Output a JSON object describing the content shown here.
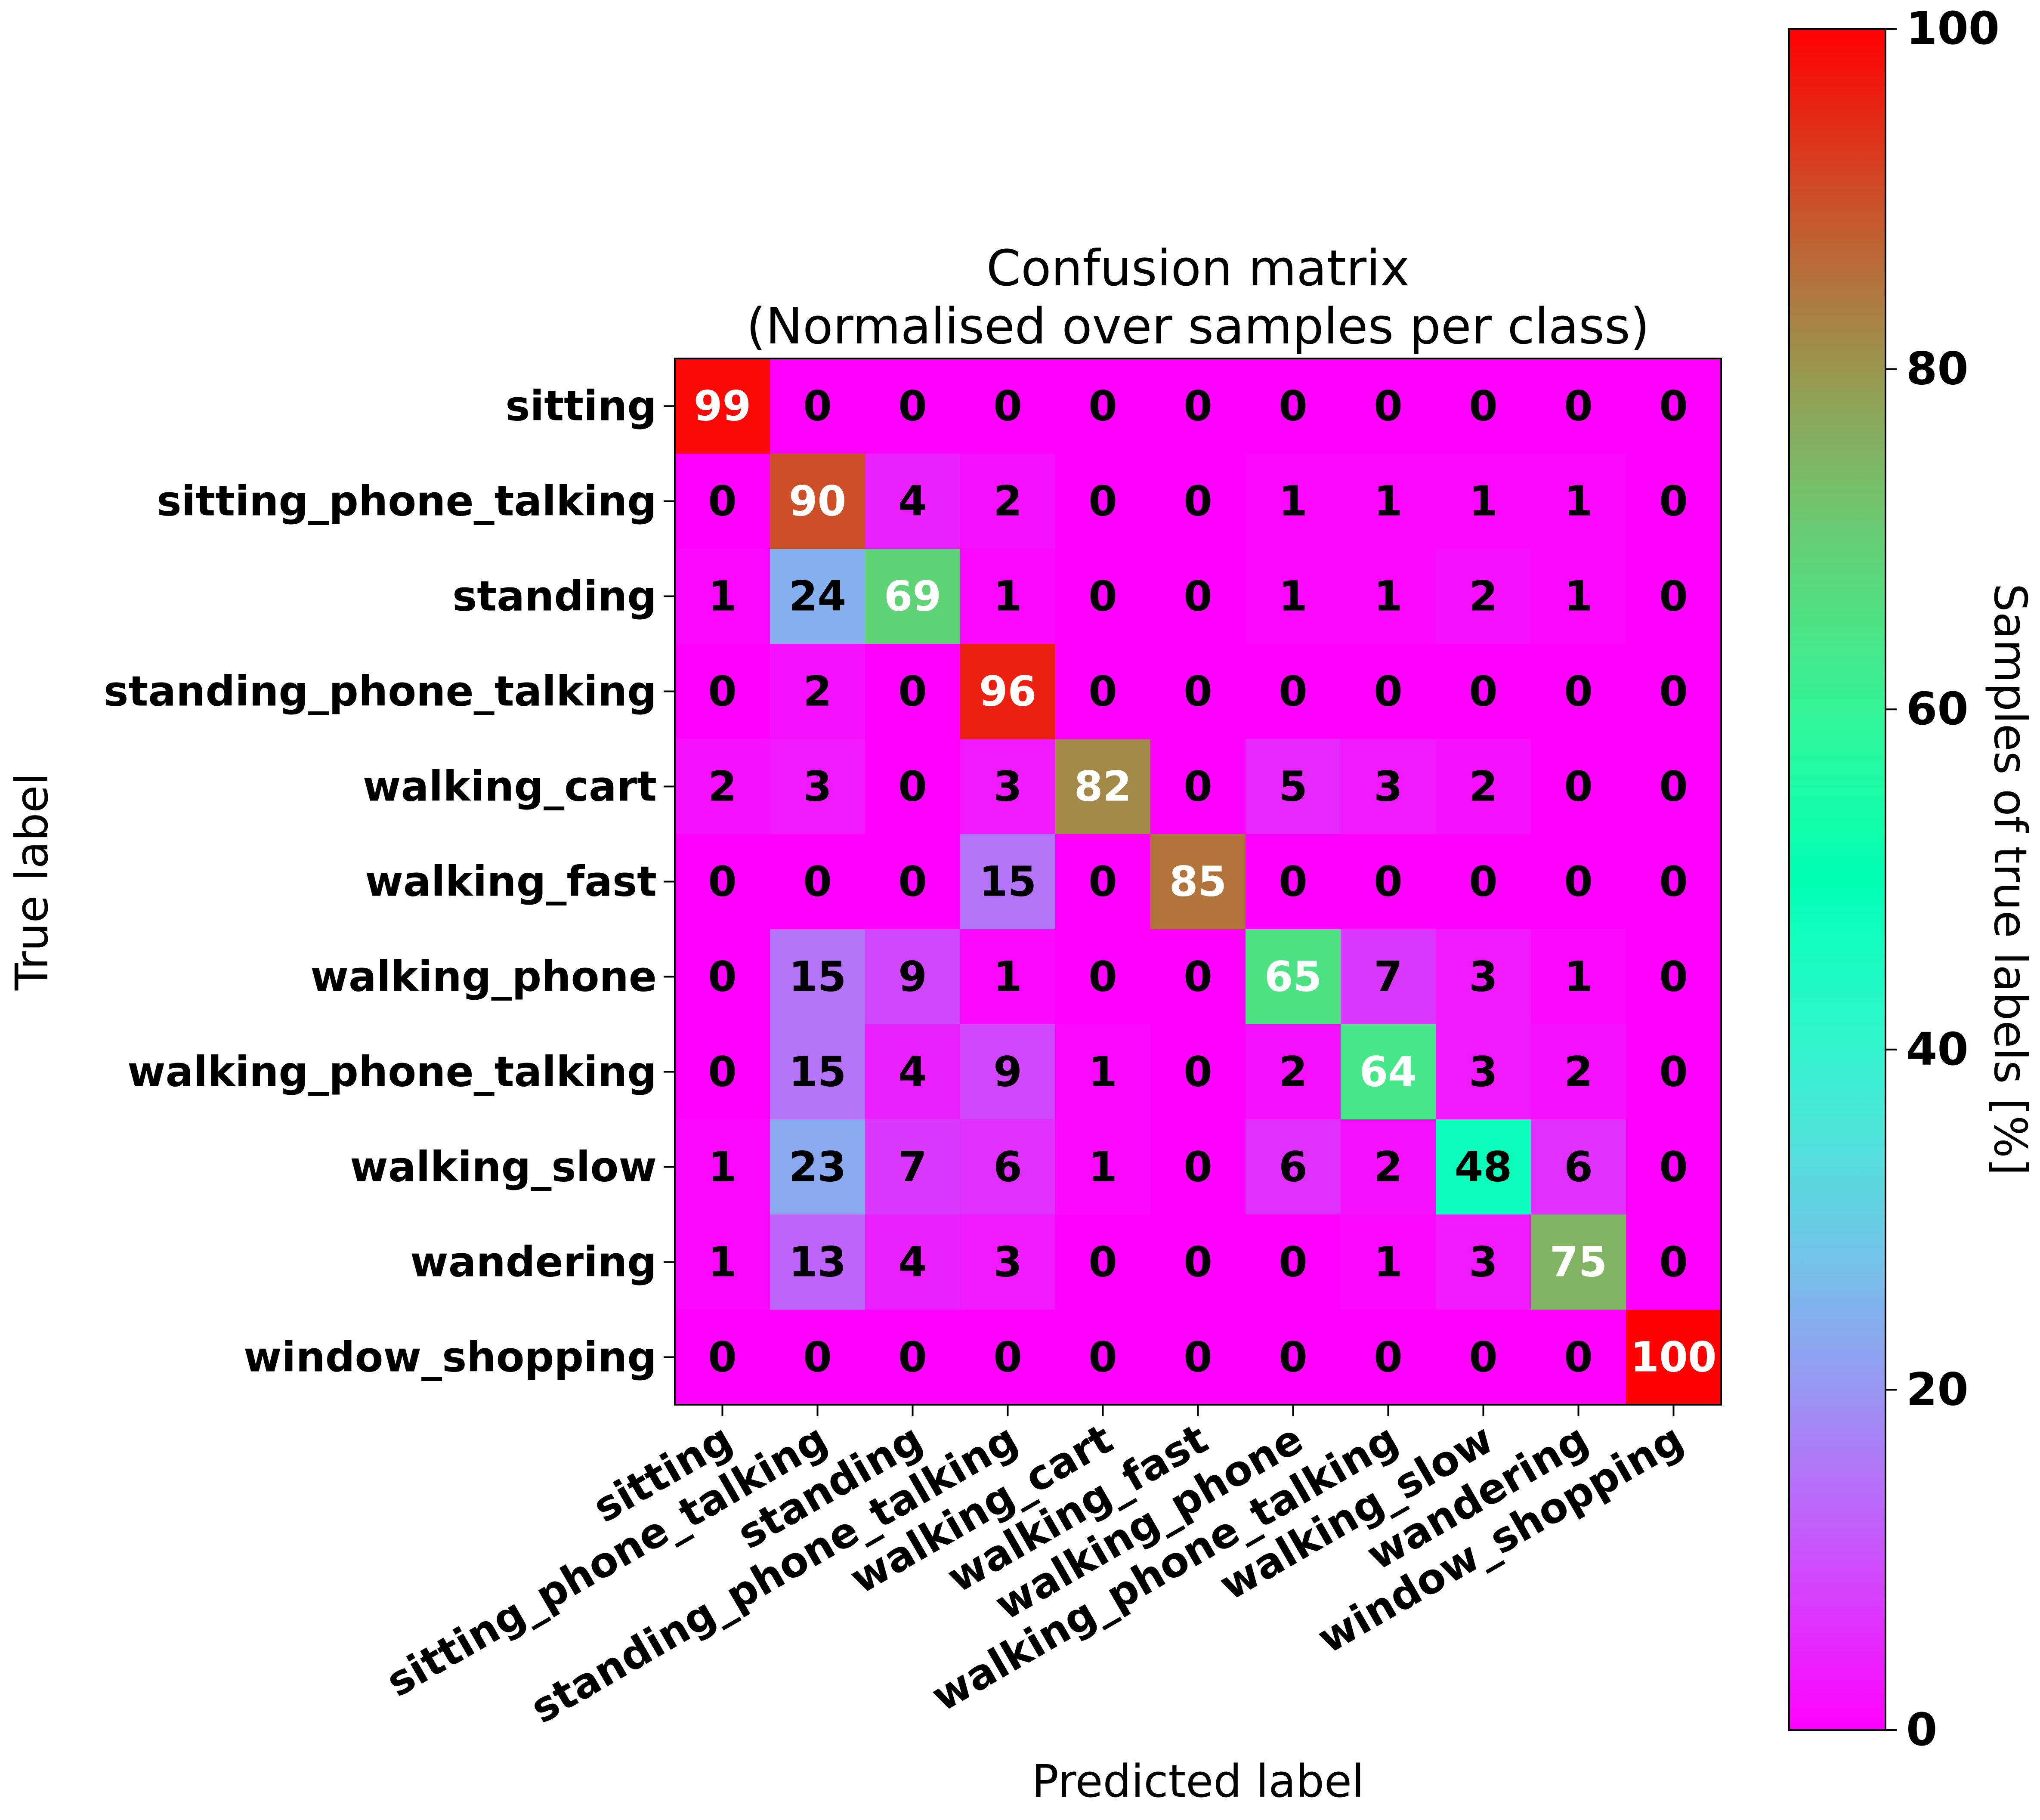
{
  "chart_data": {
    "type": "heatmap",
    "title": [
      "Confusion matrix",
      "(Normalised over samples per class)"
    ],
    "xlabel": "Predicted label",
    "ylabel": "True label",
    "row_labels": [
      "sitting",
      "sitting_phone_talking",
      "standing",
      "standing_phone_talking",
      "walking_cart",
      "walking_fast",
      "walking_phone",
      "walking_phone_talking",
      "walking_slow",
      "wandering",
      "window_shopping"
    ],
    "col_labels": [
      "sitting",
      "sitting_phone_talking",
      "standing",
      "standing_phone_talking",
      "walking_cart",
      "walking_fast",
      "walking_phone",
      "walking_phone_talking",
      "walking_slow",
      "wandering",
      "window_shopping"
    ],
    "values": [
      [
        99,
        0,
        0,
        0,
        0,
        0,
        0,
        0,
        0,
        0,
        0
      ],
      [
        0,
        90,
        4,
        2,
        0,
        0,
        1,
        1,
        1,
        1,
        0
      ],
      [
        1,
        24,
        69,
        1,
        0,
        0,
        1,
        1,
        2,
        1,
        0
      ],
      [
        0,
        2,
        0,
        96,
        0,
        0,
        0,
        0,
        0,
        0,
        0
      ],
      [
        2,
        3,
        0,
        3,
        82,
        0,
        5,
        3,
        2,
        0,
        0
      ],
      [
        0,
        0,
        0,
        15,
        0,
        85,
        0,
        0,
        0,
        0,
        0
      ],
      [
        0,
        15,
        9,
        1,
        0,
        0,
        65,
        7,
        3,
        1,
        0
      ],
      [
        0,
        15,
        4,
        9,
        1,
        0,
        2,
        64,
        3,
        2,
        0
      ],
      [
        1,
        23,
        7,
        6,
        1,
        0,
        6,
        2,
        48,
        6,
        0
      ],
      [
        1,
        13,
        4,
        3,
        0,
        0,
        0,
        1,
        3,
        75,
        0
      ],
      [
        0,
        0,
        0,
        0,
        0,
        0,
        0,
        0,
        0,
        0,
        100
      ]
    ],
    "colormap": "rainbow",
    "colorbar": {
      "label": "Samples of true labels [%]",
      "range": [
        0,
        100
      ],
      "ticks": [
        0,
        20,
        40,
        60,
        80,
        100
      ]
    }
  }
}
